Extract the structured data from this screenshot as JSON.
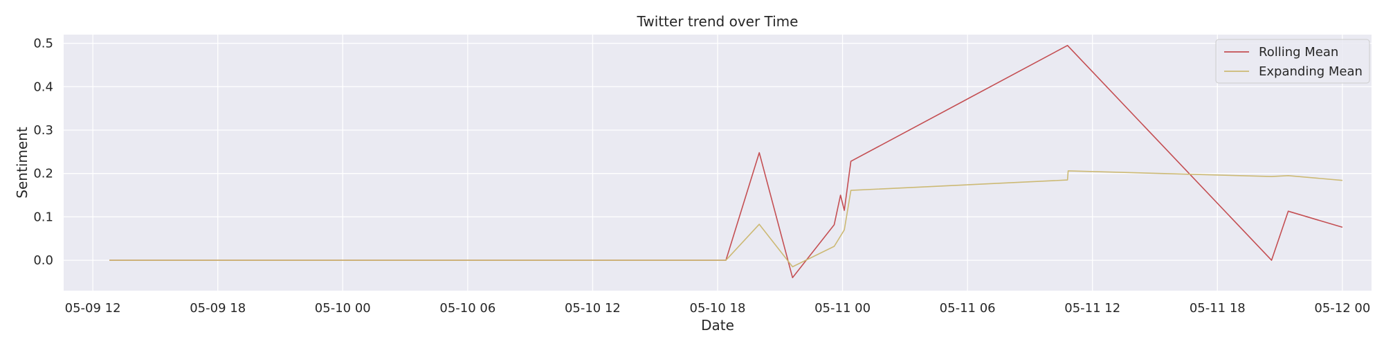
{
  "chart_data": {
    "type": "line",
    "title": "Twitter trend over Time",
    "xlabel": "Date",
    "ylabel": "Sentiment",
    "x_type": "datetime",
    "xlim": [
      "2024-05-09T10:36",
      "2024-05-12T01:24"
    ],
    "ylim": [
      -0.07,
      0.52
    ],
    "x_ticks": [
      {
        "value": "2024-05-09T12:00",
        "label": "05-09 12"
      },
      {
        "value": "2024-05-09T18:00",
        "label": "05-09 18"
      },
      {
        "value": "2024-05-10T00:00",
        "label": "05-10 00"
      },
      {
        "value": "2024-05-10T06:00",
        "label": "05-10 06"
      },
      {
        "value": "2024-05-10T12:00",
        "label": "05-10 12"
      },
      {
        "value": "2024-05-10T18:00",
        "label": "05-10 18"
      },
      {
        "value": "2024-05-11T00:00",
        "label": "05-11 00"
      },
      {
        "value": "2024-05-11T06:00",
        "label": "05-11 06"
      },
      {
        "value": "2024-05-11T12:00",
        "label": "05-11 12"
      },
      {
        "value": "2024-05-11T18:00",
        "label": "05-11 18"
      },
      {
        "value": "2024-05-12T00:00",
        "label": "05-12 00"
      }
    ],
    "y_ticks": [
      {
        "value": 0.0,
        "label": "0.0"
      },
      {
        "value": 0.1,
        "label": "0.1"
      },
      {
        "value": 0.2,
        "label": "0.2"
      },
      {
        "value": 0.3,
        "label": "0.3"
      },
      {
        "value": 0.4,
        "label": "0.4"
      },
      {
        "value": 0.5,
        "label": "0.5"
      }
    ],
    "grid": true,
    "legend_position": "top-right",
    "series": [
      {
        "name": "Rolling Mean",
        "color": "#c44e52",
        "points": [
          {
            "x": "2024-05-09T12:48",
            "y": 0.0
          },
          {
            "x": "2024-05-10T18:24",
            "y": 0.0
          },
          {
            "x": "2024-05-10T20:00",
            "y": 0.248
          },
          {
            "x": "2024-05-10T21:36",
            "y": -0.04
          },
          {
            "x": "2024-05-10T23:36",
            "y": 0.082
          },
          {
            "x": "2024-05-10T23:54",
            "y": 0.15
          },
          {
            "x": "2024-05-11T00:05",
            "y": 0.115
          },
          {
            "x": "2024-05-11T00:24",
            "y": 0.228
          },
          {
            "x": "2024-05-11T10:48",
            "y": 0.495
          },
          {
            "x": "2024-05-11T20:36",
            "y": 0.0
          },
          {
            "x": "2024-05-11T21:24",
            "y": 0.113
          },
          {
            "x": "2024-05-12T00:00",
            "y": 0.076
          }
        ]
      },
      {
        "name": "Expanding Mean",
        "color": "#ccb974",
        "points": [
          {
            "x": "2024-05-09T12:48",
            "y": 0.0
          },
          {
            "x": "2024-05-10T18:24",
            "y": 0.0
          },
          {
            "x": "2024-05-10T20:00",
            "y": 0.083
          },
          {
            "x": "2024-05-10T21:36",
            "y": -0.015
          },
          {
            "x": "2024-05-10T23:36",
            "y": 0.032
          },
          {
            "x": "2024-05-11T00:05",
            "y": 0.07
          },
          {
            "x": "2024-05-11T00:24",
            "y": 0.161
          },
          {
            "x": "2024-05-11T10:48",
            "y": 0.185
          },
          {
            "x": "2024-05-11T10:50",
            "y": 0.206
          },
          {
            "x": "2024-05-11T20:36",
            "y": 0.193
          },
          {
            "x": "2024-05-11T21:24",
            "y": 0.195
          },
          {
            "x": "2024-05-12T00:00",
            "y": 0.184
          }
        ]
      }
    ]
  }
}
